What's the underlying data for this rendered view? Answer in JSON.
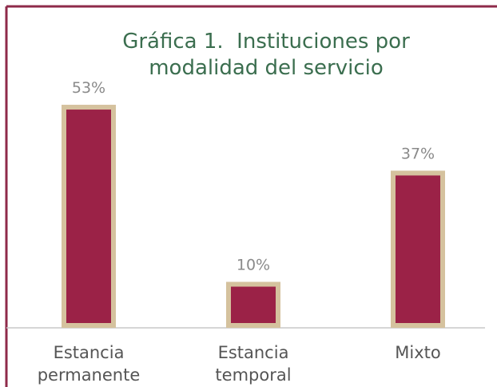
{
  "chart_data": {
    "type": "bar",
    "title": "Gráfica 1.  Instituciones por modalidad del servicio",
    "categories": [
      "Estancia permanente",
      "Estancia temporal",
      "Mixto"
    ],
    "values": [
      53,
      10,
      37
    ],
    "value_labels": [
      "53%",
      "10%",
      "37%"
    ],
    "color": "#9b2247",
    "edge_color": "#d5c29e"
  }
}
